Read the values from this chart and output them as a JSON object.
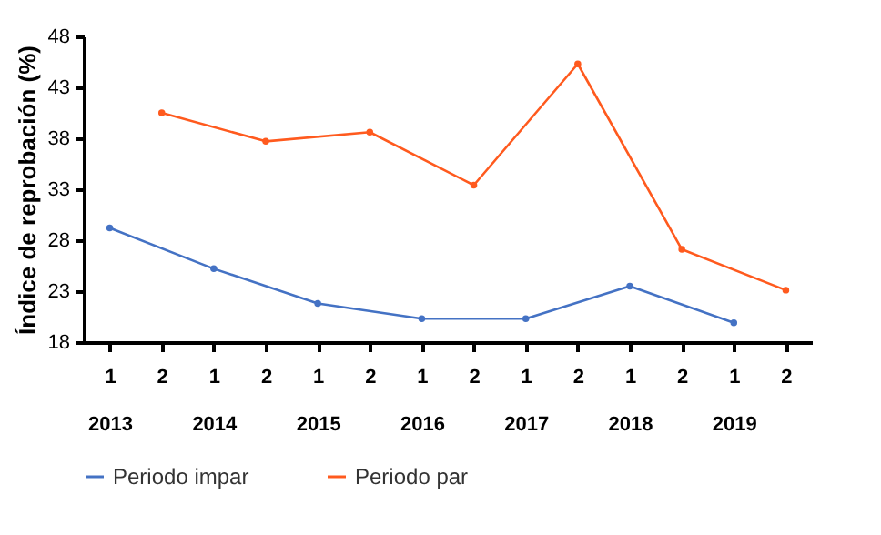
{
  "chart_data": {
    "type": "line",
    "ylabel": "Índice de reprobación (%)",
    "categories": [
      "1\n2013",
      "2",
      "1\n2014",
      "2",
      "1\n2015",
      "2",
      "1\n2016",
      "2",
      "1\n2017",
      "2",
      "1\n2018",
      "2",
      "1\n2019",
      "2"
    ],
    "series": [
      {
        "name": "Periodo impar",
        "color": "#4472c4",
        "values": [
          29.2,
          null,
          25.2,
          null,
          21.8,
          null,
          20.3,
          null,
          20.3,
          null,
          23.5,
          null,
          19.9,
          null
        ]
      },
      {
        "name": "Periodo par",
        "color": "#ff5a1e",
        "values": [
          null,
          40.5,
          null,
          37.7,
          null,
          38.6,
          null,
          33.4,
          null,
          45.3,
          null,
          27.1,
          null,
          23.1
        ]
      }
    ],
    "ylim": [
      18,
      48
    ],
    "yticks": [
      18,
      23,
      28,
      33,
      38,
      43,
      48
    ],
    "grid": false,
    "legend": "bottom",
    "marker": "circle"
  }
}
